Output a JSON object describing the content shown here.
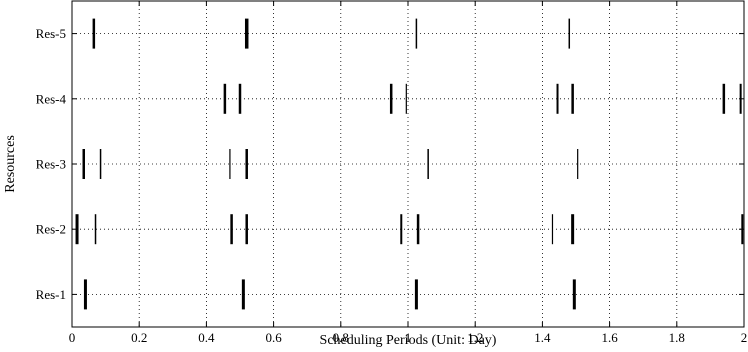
{
  "chart_data": {
    "type": "scatter",
    "mark": "vertical-tick",
    "title": "",
    "xlabel": "Scheduling Periods (Unit: Day)",
    "ylabel": "Resources",
    "xlim": [
      0,
      2
    ],
    "x_ticks": [
      "0",
      "0.2",
      "0.4",
      "0.6",
      "0.8",
      "1",
      "1.2",
      "1.4",
      "1.6",
      "1.8",
      "2"
    ],
    "categories": [
      "Res-1",
      "Res-2",
      "Res-3",
      "Res-4",
      "Res-5"
    ],
    "grid": true,
    "series": [
      {
        "category": "Res-1",
        "events": [
          {
            "x": 0.04,
            "w": 3
          },
          {
            "x": 0.51,
            "w": 3
          },
          {
            "x": 1.025,
            "w": 3
          },
          {
            "x": 1.495,
            "w": 3
          }
        ]
      },
      {
        "category": "Res-2",
        "events": [
          {
            "x": 0.015,
            "w": 3
          },
          {
            "x": 0.07,
            "w": 1.5
          },
          {
            "x": 0.475,
            "w": 2.5
          },
          {
            "x": 0.52,
            "w": 2.5
          },
          {
            "x": 0.98,
            "w": 2
          },
          {
            "x": 1.03,
            "w": 2.5
          },
          {
            "x": 1.43,
            "w": 1.2
          },
          {
            "x": 1.49,
            "w": 3
          },
          {
            "x": 1.995,
            "w": 2
          }
        ]
      },
      {
        "category": "Res-3",
        "events": [
          {
            "x": 0.035,
            "w": 2.5
          },
          {
            "x": 0.085,
            "w": 1.5
          },
          {
            "x": 0.47,
            "w": 1.2
          },
          {
            "x": 0.52,
            "w": 2.5
          },
          {
            "x": 1.06,
            "w": 1.5
          },
          {
            "x": 1.505,
            "w": 1.2
          }
        ]
      },
      {
        "category": "Res-4",
        "events": [
          {
            "x": 0.455,
            "w": 2.5
          },
          {
            "x": 0.5,
            "w": 2.5
          },
          {
            "x": 0.95,
            "w": 2.5
          },
          {
            "x": 0.995,
            "w": 1.2
          },
          {
            "x": 1.445,
            "w": 2
          },
          {
            "x": 1.49,
            "w": 2.5
          },
          {
            "x": 1.94,
            "w": 2.5
          },
          {
            "x": 1.99,
            "w": 2
          }
        ]
      },
      {
        "category": "Res-5",
        "events": [
          {
            "x": 0.065,
            "w": 2.5
          },
          {
            "x": 0.52,
            "w": 3.5
          },
          {
            "x": 1.025,
            "w": 1.5
          },
          {
            "x": 1.48,
            "w": 1.5
          }
        ]
      }
    ]
  }
}
